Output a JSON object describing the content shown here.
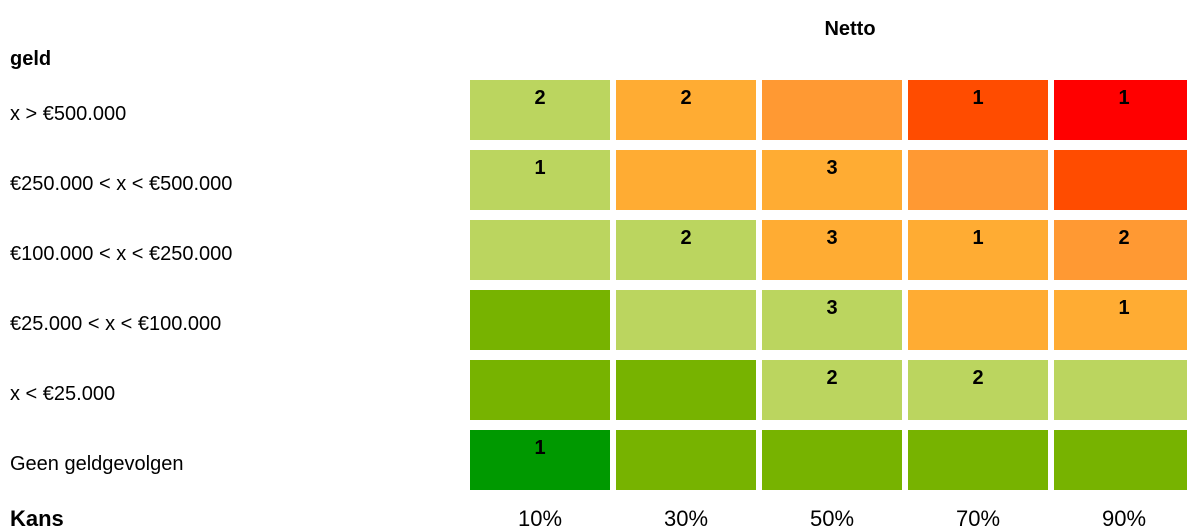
{
  "chart_data": {
    "type": "heatmap",
    "title": "Netto",
    "ylabel": "geld",
    "xlabel": "Kans",
    "x_categories": [
      "10%",
      "30%",
      "50%",
      "70%",
      "90%"
    ],
    "y_categories": [
      "x > €500.000",
      "€250.000 < x < €500.000",
      "€100.000 < x < €250.000",
      "€25.000 < x < €100.000",
      "x < €25.000",
      "Geen geldgevolgen"
    ],
    "counts": [
      [
        "2",
        "2",
        "",
        "1",
        "1"
      ],
      [
        "1",
        "",
        "3",
        "",
        ""
      ],
      [
        "",
        "2",
        "3",
        "1",
        "2"
      ],
      [
        "",
        "",
        "3",
        "",
        "1"
      ],
      [
        "",
        "",
        "2",
        "2",
        ""
      ],
      [
        "1",
        "",
        "",
        "",
        ""
      ]
    ],
    "cell_colors": [
      [
        "#BBD55F",
        "#FFAC33",
        "#FF9933",
        "#FF4C00",
        "#FF0000"
      ],
      [
        "#BBD55F",
        "#FFAC33",
        "#FFAC33",
        "#FF9933",
        "#FF4C00"
      ],
      [
        "#BBD55F",
        "#BBD55F",
        "#FFAC33",
        "#FFAC33",
        "#FF9933"
      ],
      [
        "#77B300",
        "#BBD55F",
        "#BBD55F",
        "#FFAC33",
        "#FFAC33"
      ],
      [
        "#77B300",
        "#77B300",
        "#BBD55F",
        "#BBD55F",
        "#BBD55F"
      ],
      [
        "#009900",
        "#77B300",
        "#77B300",
        "#77B300",
        "#77B300"
      ]
    ]
  }
}
